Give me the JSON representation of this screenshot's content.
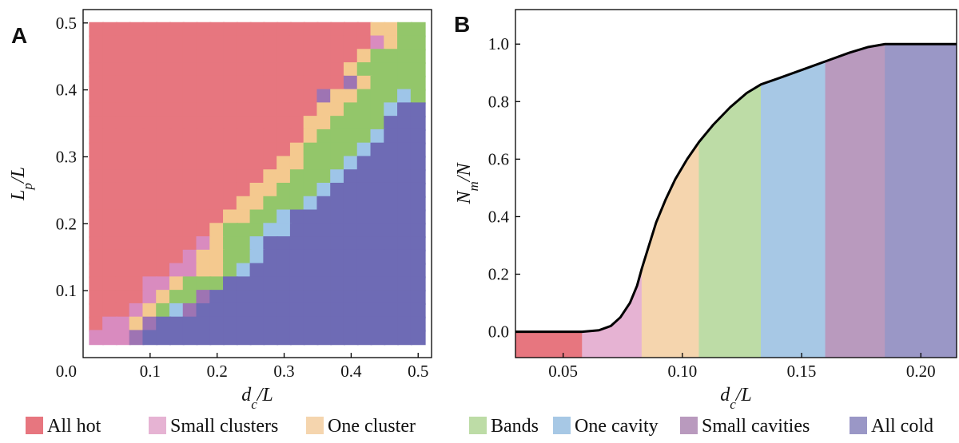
{
  "colors": {
    "hot": "#E7767F",
    "small_clusters": "#E6B3D3",
    "one_cluster": "#F5D5AE",
    "bands": "#BDDCA6",
    "one_cavity": "#A7C8E5",
    "small_cavities": "#B99ABE",
    "cold": "#9A97C6",
    "grid_hot": "#E7767F",
    "grid_small_clusters": "#D98BBF",
    "grid_one_cluster": "#F4C98F",
    "grid_bands": "#93C66A",
    "grid_one_cavity": "#9EC5E8",
    "grid_small_cavities": "#9E74B3",
    "grid_cold": "#6E6BB5"
  },
  "legend": [
    {
      "label": "All hot",
      "key": "hot"
    },
    {
      "label": "Small clusters",
      "key": "small_clusters"
    },
    {
      "label": "One cluster",
      "key": "one_cluster"
    },
    {
      "label": "Bands",
      "key": "bands"
    },
    {
      "label": "One cavity",
      "key": "one_cavity"
    },
    {
      "label": "Small cavities",
      "key": "small_cavities"
    },
    {
      "label": "All cold",
      "key": "cold"
    }
  ],
  "chart_data": [
    {
      "panel": "A",
      "type": "heatmap",
      "xlabel": {
        "base": "d",
        "sub": "c",
        "rest": "/L"
      },
      "ylabel": {
        "base": "L",
        "sub": "p",
        "rest": "/L"
      },
      "xlim": [
        0.0,
        0.52
      ],
      "ylim": [
        0.0,
        0.52
      ],
      "xticks": [
        0.1,
        0.2,
        0.3,
        0.4,
        0.5
      ],
      "yticks": [
        0.1,
        0.2,
        0.3,
        0.4,
        0.5
      ],
      "origin_label": "0.0",
      "x_values": [
        0.02,
        0.04,
        0.06,
        0.08,
        0.1,
        0.12,
        0.14,
        0.16,
        0.18,
        0.2,
        0.22,
        0.24,
        0.26,
        0.28,
        0.3,
        0.32,
        0.34,
        0.36,
        0.38,
        0.4,
        0.42,
        0.44,
        0.46,
        0.48,
        0.5
      ],
      "y_values": [
        0.03,
        0.05,
        0.07,
        0.09,
        0.11,
        0.13,
        0.15,
        0.17,
        0.19,
        0.21,
        0.23,
        0.25,
        0.27,
        0.29,
        0.31,
        0.33,
        0.35,
        0.37,
        0.39,
        0.41,
        0.43,
        0.45,
        0.47,
        0.49
      ],
      "categories": [
        "hot",
        "small_clusters",
        "one_cluster",
        "bands",
        "one_cavity",
        "small_cavities",
        "cold"
      ],
      "rows_top_to_bottom": [
        "HHHHHHHHHHHHHHHHHHHHHOOGG",
        "HHHHHHHHHHHHHHHHHHHHHSOGG",
        "HHHHHHHHHHHHHHHHHHHHOGGGG",
        "HHHHHHHHHHHHHHHHHHHOGGGGG",
        "HHHHHHHHHHHHHHHHHHHVOGGGG",
        "HHHHHHHHHHHHHHHHHVOOGGGBG",
        "HHHHHHHHHHHHHHHHHOOGGGBCC",
        "HHHHHHHHHHHHHHHHOOGGGGCCC",
        "HHHHHHHHHHHHHHHHOGGGGBCCC",
        "HHHHHHHHHHHHHHHOGGGGBCCCC",
        "HHHHHHHHHHHHHHOOGGGBCCCCC",
        "HHHHHHHHHHHHHOOGGGBCCCCCC",
        "HHHHHHHHHHHHOOGGGBCCCCCCC",
        "HHHHHHHHHHHOOGGGBCCCCCCCC",
        "HHHHHHHHHHOOGGBCCCCCCCCCC",
        "HHHHHHHHHOGGGBBCCCCCCCCCC",
        "HHHHHHHHSOGGBCCCCCCCCCCCC",
        "HHHHHHHSOOGGBCCCCCCCCCCCC",
        "HHHHHHSSOOGBCCCCCCCCCCCCC",
        "HHHHSSOGGGCCCCCCCCCCCCCCC",
        "HHHHSOGGVCCCCCCCCCCCCCCCC",
        "HHHSOGBVCCCCCCCCCCCCCCCCC",
        "HSSOVCCCCCCCCCCCCCCCCCCCC",
        "SSSVCCCCCCCCCCCCCCCCCCCCC"
      ]
    },
    {
      "panel": "B",
      "type": "area",
      "xlabel": {
        "base": "d",
        "sub": "c",
        "rest": "/L"
      },
      "ylabel": {
        "base": "N",
        "sub": "m",
        "rest": "/N"
      },
      "xlim": [
        0.03,
        0.215
      ],
      "ylim": [
        -0.09,
        1.12
      ],
      "xticks": [
        0.05,
        0.1,
        0.15,
        0.2
      ],
      "xtick_labels": [
        "0.05",
        "0.10",
        "0.15",
        "0.20"
      ],
      "yticks": [
        0.0,
        0.2,
        0.4,
        0.6,
        0.8,
        1.0
      ],
      "ytick_labels": [
        "0.0",
        "0.2",
        "0.4",
        "0.6",
        "0.8",
        "1.0"
      ],
      "x": [
        0.03,
        0.045,
        0.058,
        0.065,
        0.07,
        0.074,
        0.078,
        0.081,
        0.083,
        0.086,
        0.089,
        0.093,
        0.097,
        0.102,
        0.107,
        0.113,
        0.12,
        0.127,
        0.133,
        0.14,
        0.15,
        0.16,
        0.17,
        0.178,
        0.185,
        0.195,
        0.215
      ],
      "y": [
        0.0,
        0.0,
        0.0,
        0.005,
        0.02,
        0.05,
        0.1,
        0.16,
        0.22,
        0.3,
        0.38,
        0.46,
        0.53,
        0.6,
        0.66,
        0.72,
        0.78,
        0.83,
        0.86,
        0.88,
        0.91,
        0.94,
        0.97,
        0.99,
        1.0,
        1.0,
        1.0
      ],
      "regions": [
        {
          "key": "hot",
          "from": 0.03,
          "to": 0.058
        },
        {
          "key": "small_clusters",
          "from": 0.058,
          "to": 0.083
        },
        {
          "key": "one_cluster",
          "from": 0.083,
          "to": 0.107
        },
        {
          "key": "bands",
          "from": 0.107,
          "to": 0.133
        },
        {
          "key": "one_cavity",
          "from": 0.133,
          "to": 0.16
        },
        {
          "key": "small_cavities",
          "from": 0.16,
          "to": 0.185
        },
        {
          "key": "cold",
          "from": 0.185,
          "to": 0.215
        }
      ]
    }
  ]
}
